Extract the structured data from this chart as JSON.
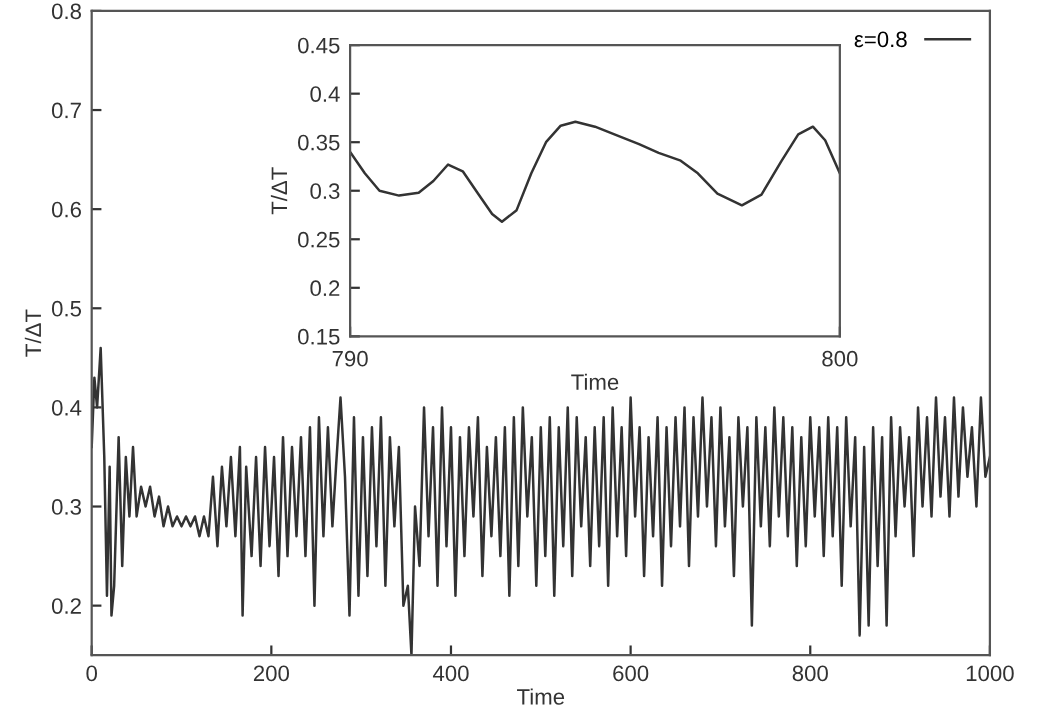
{
  "chart_data": [
    {
      "type": "line",
      "xlabel": "Time",
      "ylabel": "T/ΔT",
      "xlim": [
        0,
        1000
      ],
      "ylim": [
        0.15,
        0.8
      ],
      "xticks": [
        0,
        200,
        400,
        600,
        800,
        1000
      ],
      "yticks": [
        0.2,
        0.3,
        0.4,
        0.5,
        0.6,
        0.7,
        0.8
      ],
      "legend": "top right",
      "grid": false,
      "series": [
        {
          "name": "ε=0.8",
          "color": "#333333",
          "x": [
            0,
            3,
            6,
            10,
            14,
            17,
            20,
            22,
            25,
            30,
            34,
            38,
            42,
            46,
            50,
            55,
            60,
            65,
            70,
            75,
            80,
            85,
            90,
            95,
            100,
            105,
            110,
            115,
            120,
            125,
            130,
            135,
            140,
            145,
            150,
            155,
            160,
            165,
            168,
            172,
            178,
            183,
            188,
            193,
            198,
            203,
            208,
            213,
            218,
            223,
            228,
            233,
            238,
            243,
            248,
            253,
            258,
            263,
            268,
            272,
            277,
            282,
            287,
            292,
            297,
            302,
            307,
            312,
            317,
            322,
            327,
            332,
            337,
            342,
            347,
            352,
            356,
            360,
            365,
            370,
            375,
            380,
            385,
            390,
            395,
            400,
            405,
            410,
            415,
            420,
            425,
            430,
            435,
            440,
            445,
            450,
            455,
            460,
            465,
            470,
            475,
            480,
            485,
            490,
            495,
            500,
            505,
            510,
            515,
            520,
            525,
            530,
            535,
            540,
            545,
            550,
            555,
            560,
            565,
            570,
            575,
            580,
            585,
            590,
            595,
            600,
            605,
            610,
            615,
            620,
            625,
            630,
            635,
            640,
            645,
            650,
            655,
            660,
            665,
            670,
            675,
            680,
            685,
            690,
            695,
            700,
            705,
            710,
            715,
            720,
            725,
            730,
            735,
            740,
            745,
            750,
            755,
            760,
            765,
            770,
            775,
            780,
            785,
            790,
            795,
            800,
            805,
            810,
            815,
            820,
            825,
            830,
            835,
            840,
            845,
            850,
            855,
            860,
            865,
            870,
            875,
            880,
            885,
            890,
            895,
            900,
            905,
            910,
            915,
            920,
            925,
            930,
            935,
            940,
            945,
            950,
            955,
            960,
            965,
            970,
            975,
            980,
            985,
            990,
            995,
            1000
          ],
          "values": [
            0.36,
            0.43,
            0.4,
            0.46,
            0.35,
            0.21,
            0.34,
            0.19,
            0.22,
            0.37,
            0.24,
            0.35,
            0.29,
            0.36,
            0.29,
            0.32,
            0.3,
            0.32,
            0.29,
            0.31,
            0.28,
            0.3,
            0.28,
            0.29,
            0.28,
            0.29,
            0.28,
            0.29,
            0.27,
            0.29,
            0.27,
            0.33,
            0.26,
            0.34,
            0.28,
            0.35,
            0.27,
            0.36,
            0.19,
            0.34,
            0.25,
            0.35,
            0.24,
            0.36,
            0.26,
            0.35,
            0.23,
            0.37,
            0.25,
            0.36,
            0.27,
            0.37,
            0.25,
            0.38,
            0.2,
            0.39,
            0.27,
            0.38,
            0.28,
            0.34,
            0.41,
            0.33,
            0.19,
            0.39,
            0.21,
            0.37,
            0.23,
            0.38,
            0.26,
            0.39,
            0.22,
            0.37,
            0.28,
            0.36,
            0.2,
            0.22,
            0.15,
            0.3,
            0.24,
            0.4,
            0.27,
            0.38,
            0.22,
            0.4,
            0.26,
            0.38,
            0.21,
            0.37,
            0.25,
            0.38,
            0.29,
            0.39,
            0.23,
            0.36,
            0.27,
            0.37,
            0.25,
            0.38,
            0.21,
            0.39,
            0.24,
            0.4,
            0.29,
            0.37,
            0.22,
            0.38,
            0.25,
            0.39,
            0.21,
            0.38,
            0.26,
            0.4,
            0.23,
            0.39,
            0.28,
            0.37,
            0.24,
            0.38,
            0.26,
            0.39,
            0.22,
            0.4,
            0.27,
            0.38,
            0.25,
            0.41,
            0.29,
            0.38,
            0.23,
            0.37,
            0.27,
            0.39,
            0.22,
            0.38,
            0.26,
            0.39,
            0.28,
            0.4,
            0.24,
            0.39,
            0.29,
            0.41,
            0.3,
            0.39,
            0.26,
            0.4,
            0.28,
            0.37,
            0.23,
            0.39,
            0.3,
            0.38,
            0.18,
            0.39,
            0.28,
            0.38,
            0.26,
            0.4,
            0.29,
            0.39,
            0.27,
            0.38,
            0.24,
            0.37,
            0.26,
            0.39,
            0.29,
            0.38,
            0.25,
            0.39,
            0.27,
            0.38,
            0.22,
            0.39,
            0.28,
            0.37,
            0.17,
            0.36,
            0.18,
            0.38,
            0.24,
            0.37,
            0.18,
            0.39,
            0.27,
            0.38,
            0.3,
            0.37,
            0.25,
            0.4,
            0.3,
            0.39,
            0.29,
            0.41,
            0.31,
            0.39,
            0.29,
            0.41,
            0.31,
            0.4,
            0.33,
            0.38,
            0.3,
            0.41,
            0.33,
            0.35
          ]
        }
      ]
    },
    {
      "type": "line",
      "xlabel": "Time",
      "ylabel": "T/ΔT",
      "xlim": [
        790,
        800
      ],
      "ylim": [
        0.15,
        0.45
      ],
      "xticks": [
        790,
        800
      ],
      "yticks": [
        0.15,
        0.2,
        0.25,
        0.3,
        0.35,
        0.4,
        0.45
      ],
      "grid": false,
      "series": [
        {
          "color": "#333333",
          "x": [
            790,
            790.3,
            790.6,
            791.0,
            791.4,
            791.7,
            792.0,
            792.3,
            792.6,
            792.9,
            793.1,
            793.4,
            793.7,
            794.0,
            794.3,
            794.6,
            795.0,
            795.5,
            795.9,
            796.3,
            796.75,
            797.1,
            797.5,
            798.0,
            798.4,
            798.8,
            799.15,
            799.45,
            799.7,
            800
          ],
          "values": [
            0.34,
            0.318,
            0.3,
            0.295,
            0.298,
            0.31,
            0.327,
            0.32,
            0.298,
            0.276,
            0.268,
            0.28,
            0.318,
            0.35,
            0.367,
            0.371,
            0.366,
            0.356,
            0.348,
            0.339,
            0.331,
            0.318,
            0.297,
            0.285,
            0.296,
            0.33,
            0.358,
            0.366,
            0.352,
            0.318
          ]
        }
      ]
    }
  ]
}
